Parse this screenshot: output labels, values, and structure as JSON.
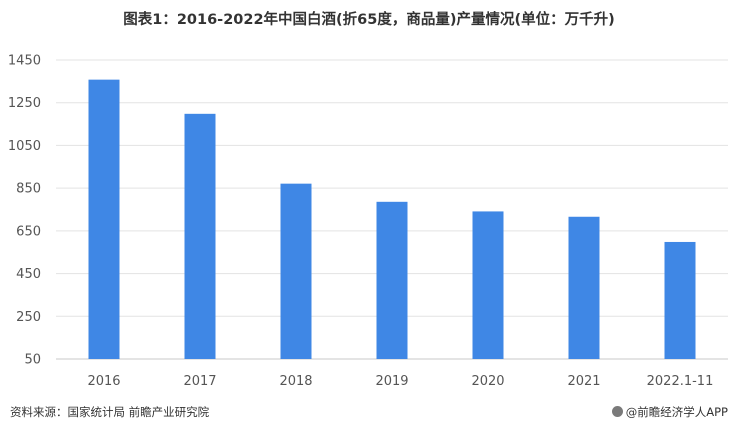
{
  "chart_data": {
    "type": "bar",
    "title": "图表1：2016-2022年中国白酒(折65度，商品量)产量情况(单位：万千升)",
    "categories": [
      "2016",
      "2017",
      "2018",
      "2019",
      "2020",
      "2021",
      "2022.1-11"
    ],
    "values": [
      1358,
      1198,
      871,
      786,
      741,
      716,
      598
    ],
    "ylim": [
      50,
      1450
    ],
    "yticks": [
      50,
      250,
      450,
      650,
      850,
      1050,
      1250,
      1450
    ],
    "grid": true,
    "colors": {
      "bar": "#3f87e5",
      "grid": "#e3e3e3",
      "axis": "#c8c8c8"
    }
  },
  "footer": {
    "source": "资料来源：国家统计局 前瞻产业研究院",
    "brand": "@前瞻经济学人APP",
    "brand_icon": "qianzhan-logo-icon"
  }
}
